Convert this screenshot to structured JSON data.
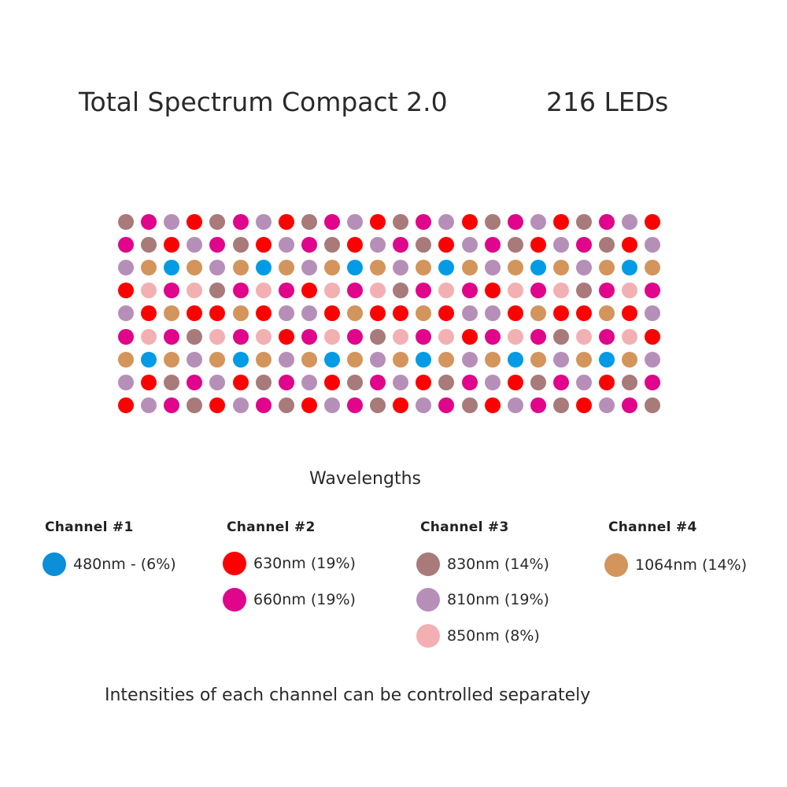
{
  "header": {
    "title": "Total Spectrum Compact 2.0",
    "led_count": "216 LEDs"
  },
  "led_colors": {
    "U": "#039be5",
    "R": "#ff0000",
    "M": "#e0058a",
    "A": "#a87a7a",
    "B": "#b68fb9",
    "C": "#f3b0b2",
    "O": "#d3955c"
  },
  "led_grid": [
    "AMBRAMBRAMBRAMBRAMBRAMBR",
    "MARBMARBMARBMARBMARBMARB",
    "BOUOBOUOBOUOBOUOBOUOBOUO",
    "RCMCAMCMRCMCAMCMRCMCAMCM",
    "BRORRORBBRORRORBBRORRORB",
    "MCMACMCRMCMACMCRMCMACMCR",
    "OUOBOUOBOUOBOUOBOUOBOUOB",
    "BRAMBRAMBRAMBRAMBRAMBRAM",
    "RBMARBMARBMARBMARBMARBMA"
  ],
  "legend": {
    "title": "Wavelengths",
    "channels": [
      {
        "name": "Channel #1",
        "items": [
          {
            "code": "U",
            "label": "480nm - (6%)",
            "color": "#0a8fd8"
          }
        ]
      },
      {
        "name": "Channel #2",
        "items": [
          {
            "code": "R",
            "label": "630nm (19%)",
            "color": "#ff0000"
          },
          {
            "code": "M",
            "label": "660nm (19%)",
            "color": "#e0058a"
          }
        ]
      },
      {
        "name": "Channel #3",
        "items": [
          {
            "code": "A",
            "label": "830nm (14%)",
            "color": "#a87a7a"
          },
          {
            "code": "B",
            "label": "810nm (19%)",
            "color": "#b68fb9"
          },
          {
            "code": "C",
            "label": "850nm (8%)",
            "color": "#f3b0b2"
          }
        ]
      },
      {
        "name": "Channel #4",
        "items": [
          {
            "code": "O",
            "label": "1064nm (14%)",
            "color": "#d3955c"
          }
        ]
      }
    ]
  },
  "footer": {
    "note": "Intensities of each channel can be controlled separately"
  }
}
